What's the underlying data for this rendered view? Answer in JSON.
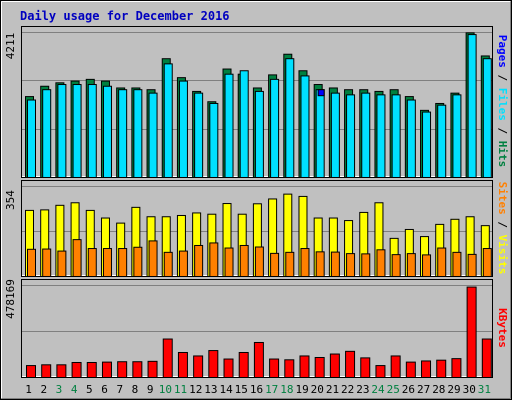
{
  "chart_data": [
    {
      "type": "bar",
      "title": "Daily usage for December 2016",
      "categories": [
        "1",
        "2",
        "3",
        "4",
        "5",
        "6",
        "7",
        "8",
        "9",
        "10",
        "11",
        "12",
        "13",
        "14",
        "15",
        "16",
        "17",
        "18",
        "19",
        "20",
        "21",
        "22",
        "23",
        "24",
        "25",
        "26",
        "27",
        "28",
        "29",
        "30",
        "31"
      ],
      "weekend_days": [
        "3",
        "4",
        "10",
        "11",
        "17",
        "18",
        "24",
        "25",
        "31"
      ],
      "ymax_label": "4211",
      "ymax": 4211,
      "legend": [
        "Pages",
        "Files",
        "Hits"
      ],
      "series": [
        {
          "name": "Hits",
          "color": "#008040",
          "values": [
            2350,
            2650,
            2750,
            2800,
            2850,
            2800,
            2600,
            2600,
            2550,
            3450,
            2900,
            2500,
            2200,
            3150,
            3000,
            2600,
            2980,
            3580,
            3100,
            2700,
            2600,
            2550,
            2550,
            2500,
            2550,
            2350,
            1950,
            2150,
            2450,
            4200,
            3530
          ]
        },
        {
          "name": "Files",
          "color": "#00e0ff",
          "values": [
            2250,
            2550,
            2700,
            2700,
            2700,
            2650,
            2550,
            2550,
            2450,
            3300,
            2800,
            2450,
            2150,
            3000,
            3100,
            2500,
            2850,
            3450,
            2950,
            2550,
            2450,
            2400,
            2450,
            2400,
            2400,
            2250,
            1900,
            2100,
            2400,
            4150,
            3450
          ]
        },
        {
          "name": "Pages",
          "color": "#0000ff",
          "values": [
            0,
            0,
            0,
            0,
            0,
            0,
            0,
            0,
            0,
            0,
            0,
            0,
            0,
            0,
            0,
            0,
            0,
            0,
            0,
            2550,
            0,
            0,
            0,
            0,
            0,
            0,
            0,
            0,
            0,
            0,
            0
          ]
        }
      ]
    },
    {
      "type": "bar",
      "ymax_label": "354",
      "ymax": 354,
      "legend": [
        "Sites",
        "Visits"
      ],
      "series": [
        {
          "name": "Visits",
          "color": "#ffff00",
          "values": [
            260,
            262,
            280,
            290,
            260,
            230,
            210,
            272,
            235,
            235,
            240,
            250,
            245,
            287,
            245,
            286,
            305,
            324,
            315,
            230,
            230,
            220,
            252,
            290,
            150,
            185,
            157,
            205,
            225,
            235,
            200
          ]
        },
        {
          "name": "Sites",
          "color": "#ff8000",
          "values": [
            107,
            108,
            100,
            145,
            110,
            110,
            110,
            115,
            140,
            95,
            100,
            122,
            132,
            112,
            122,
            116,
            91,
            95,
            110,
            97,
            96,
            90,
            89,
            105,
            86,
            90,
            85,
            112,
            95,
            87,
            110
          ]
        }
      ]
    },
    {
      "type": "bar",
      "ymax_label": "478169",
      "ymax": 478169,
      "legend": [
        "KBytes"
      ],
      "series": [
        {
          "name": "KBytes",
          "color": "#ff0000",
          "values": [
            62000,
            66000,
            66000,
            78000,
            78000,
            80000,
            82000,
            82000,
            84000,
            200000,
            130000,
            112000,
            140000,
            96000,
            130000,
            182000,
            96000,
            92000,
            112000,
            104000,
            122000,
            136000,
            102000,
            62000,
            112000,
            80000,
            86000,
            90000,
            98000,
            470000,
            200000
          ]
        }
      ]
    }
  ]
}
